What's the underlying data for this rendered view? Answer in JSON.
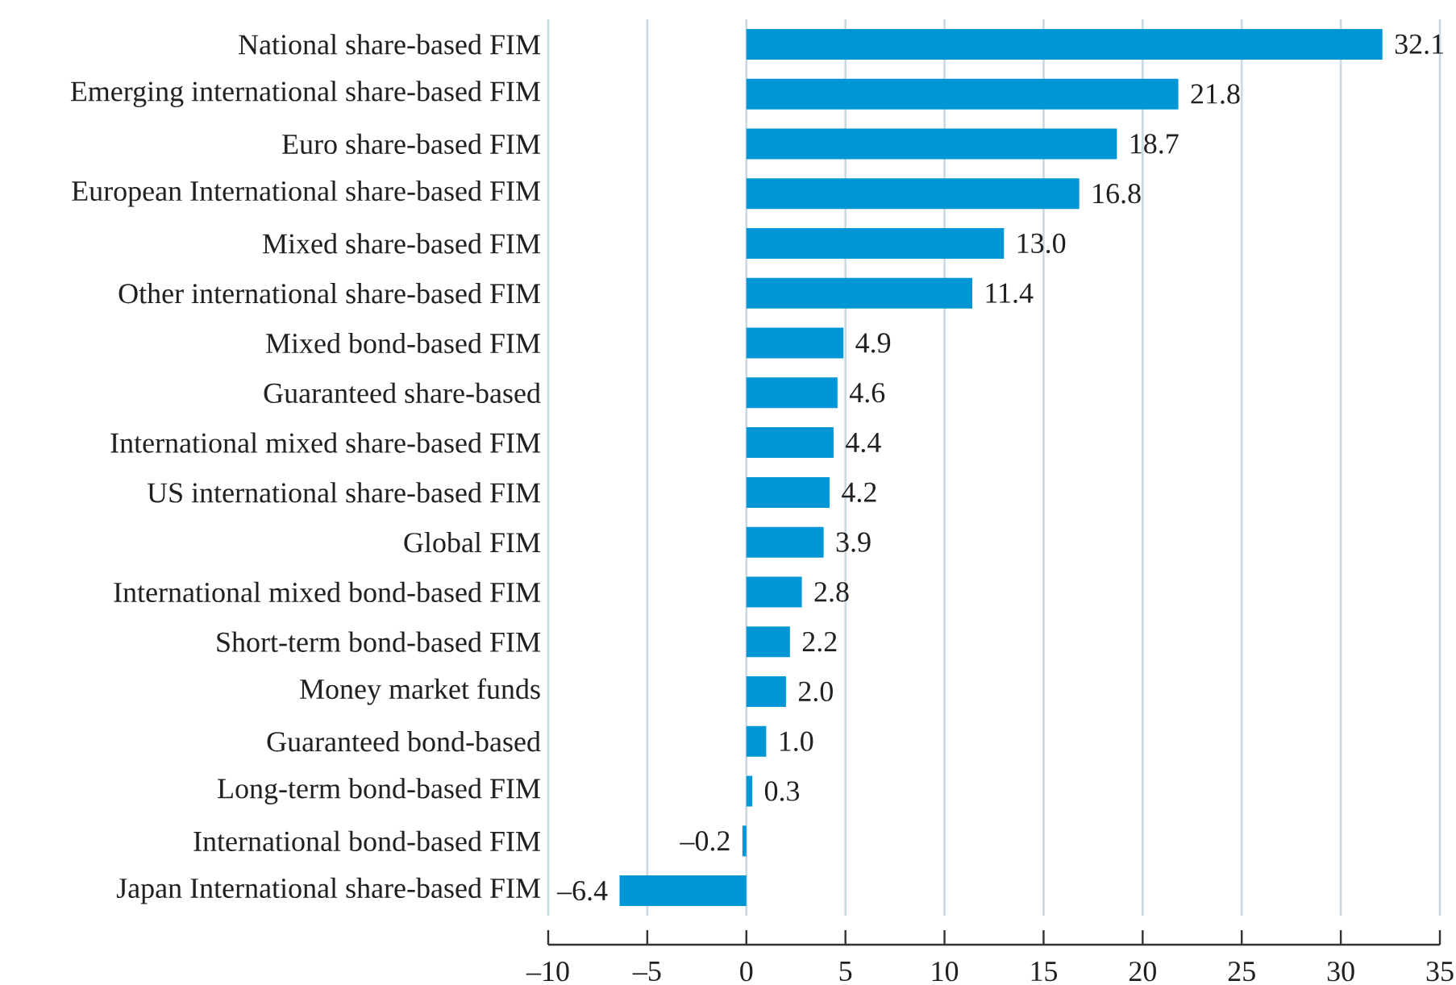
{
  "chart_data": {
    "type": "bar",
    "orientation": "horizontal",
    "categories": [
      "National share-based FIM",
      "Emerging international share-based FIM",
      "Euro share-based FIM",
      "European International share-based FIM",
      "Mixed share-based FIM",
      "Other international share-based FIM",
      "Mixed bond-based FIM",
      "Guaranteed share-based",
      "International mixed share-based FIM",
      "US international share-based FIM",
      "Global FIM",
      "International mixed bond-based FIM",
      "Short-term bond-based FIM",
      "Money market funds",
      "Guaranteed bond-based",
      "Long-term bond-based FIM",
      "International bond-based FIM",
      "Japan International share-based FIM"
    ],
    "values": [
      32.1,
      21.8,
      18.7,
      16.8,
      13.0,
      11.4,
      4.9,
      4.6,
      4.4,
      4.2,
      3.9,
      2.8,
      2.2,
      2.0,
      1.0,
      0.3,
      -0.2,
      -6.4
    ],
    "value_labels": [
      "32.1",
      "21.8",
      "18.7",
      "16.8",
      "13.0",
      "11.4",
      "4.9",
      "4.6",
      "4.4",
      "4.2",
      "3.9",
      "2.8",
      "2.2",
      "2.0",
      "1.0",
      "0.3",
      "–0.2",
      "–6.4"
    ],
    "color": "#0096d6",
    "xlim": [
      -10,
      35
    ],
    "xticks": [
      {
        "value": -10,
        "label": "–10"
      },
      {
        "value": -5,
        "label": "–5"
      },
      0,
      5,
      10,
      15,
      20,
      25,
      30,
      35
    ],
    "grid": "x"
  }
}
